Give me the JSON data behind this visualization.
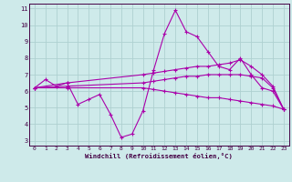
{
  "xlabel": "Windchill (Refroidissement éolien,°C)",
  "bg_color": "#ceeaea",
  "grid_color": "#aed0d0",
  "line_color": "#aa00aa",
  "xlim": [
    -0.5,
    23.5
  ],
  "ylim": [
    2.7,
    11.3
  ],
  "yticks": [
    3,
    4,
    5,
    6,
    7,
    8,
    9,
    10,
    11
  ],
  "xticks": [
    0,
    1,
    2,
    3,
    4,
    5,
    6,
    7,
    8,
    9,
    10,
    11,
    12,
    13,
    14,
    15,
    16,
    17,
    18,
    19,
    20,
    21,
    22,
    23
  ],
  "lines": [
    {
      "x": [
        0,
        1,
        2,
        3,
        4,
        5,
        6,
        7,
        8,
        9,
        10,
        11,
        12,
        13,
        14,
        15,
        16,
        17,
        18,
        19,
        20,
        21,
        22,
        23
      ],
      "y": [
        6.2,
        6.7,
        6.3,
        6.5,
        5.2,
        5.5,
        5.8,
        4.6,
        3.2,
        3.4,
        4.8,
        7.3,
        9.5,
        10.9,
        9.6,
        9.3,
        8.4,
        7.5,
        7.3,
        8.0,
        7.0,
        6.2,
        6.0,
        4.9
      ]
    },
    {
      "x": [
        0,
        3,
        10,
        11,
        12,
        13,
        14,
        15,
        16,
        17,
        18,
        19,
        20,
        21,
        22,
        23
      ],
      "y": [
        6.2,
        6.5,
        7.0,
        7.1,
        7.2,
        7.3,
        7.4,
        7.5,
        7.5,
        7.6,
        7.7,
        7.9,
        7.5,
        7.0,
        6.3,
        4.9
      ]
    },
    {
      "x": [
        0,
        3,
        10,
        11,
        12,
        13,
        14,
        15,
        16,
        17,
        18,
        19,
        20,
        21,
        22,
        23
      ],
      "y": [
        6.2,
        6.3,
        6.5,
        6.6,
        6.7,
        6.8,
        6.9,
        6.9,
        7.0,
        7.0,
        7.0,
        7.0,
        6.9,
        6.8,
        6.2,
        4.9
      ]
    },
    {
      "x": [
        0,
        3,
        10,
        11,
        12,
        13,
        14,
        15,
        16,
        17,
        18,
        19,
        20,
        21,
        22,
        23
      ],
      "y": [
        6.2,
        6.2,
        6.2,
        6.1,
        6.0,
        5.9,
        5.8,
        5.7,
        5.6,
        5.6,
        5.5,
        5.4,
        5.3,
        5.2,
        5.1,
        4.9
      ]
    }
  ]
}
